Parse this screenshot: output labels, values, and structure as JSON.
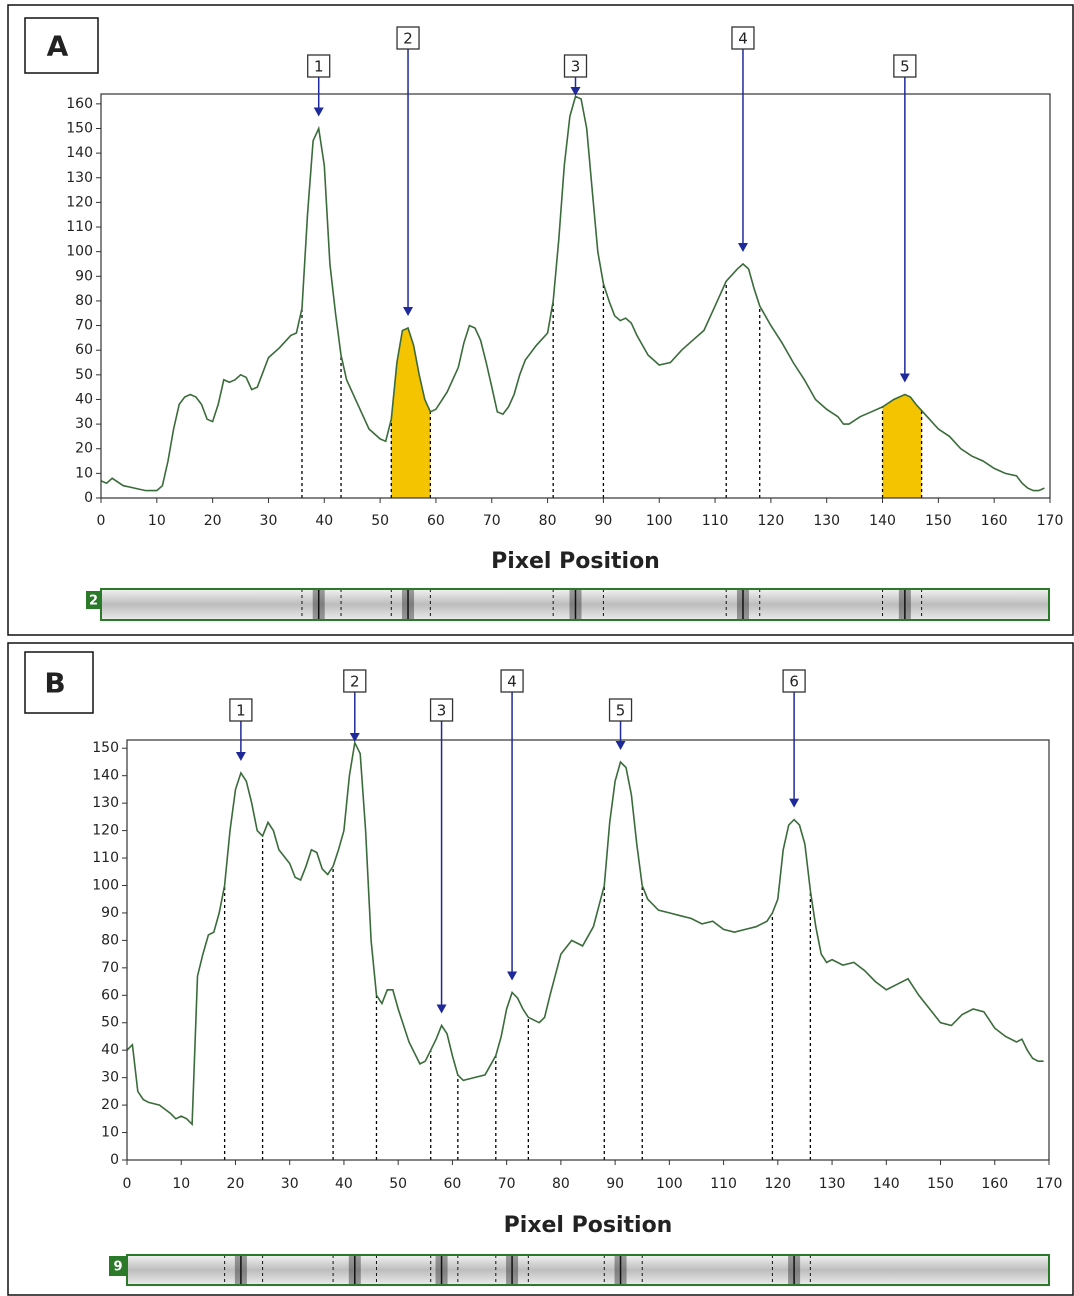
{
  "chart_data": [
    {
      "type": "line",
      "panel": "A",
      "xlabel": "Pixel Position",
      "lane": "2",
      "xlim": [
        0,
        170
      ],
      "ylim": [
        0,
        164
      ],
      "xticks": [
        0,
        10,
        20,
        30,
        40,
        50,
        60,
        70,
        80,
        90,
        100,
        110,
        120,
        130,
        140,
        150,
        160,
        170
      ],
      "yticks": [
        0,
        10,
        20,
        30,
        40,
        50,
        60,
        70,
        80,
        90,
        100,
        110,
        120,
        130,
        140,
        150,
        160
      ],
      "color": "#3a6b3a",
      "fill_color": "#f5c400",
      "x": [
        0,
        1,
        2,
        4,
        6,
        8,
        10,
        11,
        12,
        13,
        14,
        15,
        16,
        17,
        18,
        19,
        20,
        21,
        22,
        23,
        24,
        25,
        26,
        27,
        28,
        30,
        32,
        34,
        35,
        36,
        37,
        38,
        39,
        40,
        41,
        42,
        43,
        44,
        46,
        48,
        50,
        51,
        52,
        53,
        54,
        55,
        56,
        57,
        58,
        59,
        60,
        62,
        64,
        65,
        66,
        67,
        68,
        69,
        70,
        71,
        72,
        73,
        74,
        75,
        76,
        78,
        80,
        81,
        82,
        83,
        84,
        85,
        86,
        87,
        88,
        89,
        90,
        91,
        92,
        93,
        94,
        95,
        96,
        98,
        100,
        102,
        104,
        106,
        108,
        110,
        112,
        114,
        115,
        116,
        117,
        118,
        120,
        122,
        124,
        126,
        128,
        130,
        132,
        133,
        134,
        136,
        138,
        140,
        142,
        144,
        145,
        146,
        148,
        150,
        152,
        154,
        156,
        158,
        160,
        162,
        164,
        165,
        166,
        167,
        168,
        169
      ],
      "values": [
        7,
        6,
        8,
        5,
        4,
        3,
        3,
        5,
        15,
        28,
        38,
        41,
        42,
        41,
        38,
        32,
        31,
        38,
        48,
        47,
        48,
        50,
        49,
        44,
        45,
        57,
        61,
        66,
        67,
        77,
        115,
        145,
        150,
        135,
        95,
        75,
        58,
        48,
        38,
        28,
        24,
        23,
        32,
        55,
        68,
        69,
        62,
        50,
        40,
        35,
        36,
        43,
        53,
        63,
        70,
        69,
        64,
        55,
        45,
        35,
        34,
        37,
        42,
        50,
        56,
        62,
        67,
        80,
        105,
        135,
        155,
        163,
        162,
        150,
        125,
        100,
        87,
        80,
        74,
        72,
        73,
        71,
        66,
        58,
        54,
        55,
        60,
        64,
        68,
        78,
        88,
        93,
        95,
        93,
        85,
        78,
        70,
        63,
        55,
        48,
        40,
        36,
        33,
        30,
        30,
        33,
        35,
        37,
        40,
        42,
        41,
        38,
        33,
        28,
        25,
        20,
        17,
        15,
        12,
        10,
        9,
        6,
        4,
        3,
        3,
        4
      ],
      "peaks": [
        {
          "label": "1",
          "x": 39,
          "value": 150,
          "bounds": [
            36,
            43
          ],
          "shaded": false
        },
        {
          "label": "2",
          "x": 55,
          "value": 69,
          "bounds": [
            52,
            59
          ],
          "shaded": true
        },
        {
          "label": "3",
          "x": 85,
          "value": 163,
          "bounds": [
            81,
            90
          ],
          "shaded": false
        },
        {
          "label": "4",
          "x": 115,
          "value": 95,
          "bounds": [
            112,
            118
          ],
          "shaded": false
        },
        {
          "label": "5",
          "x": 144,
          "value": 42,
          "bounds": [
            140,
            147
          ],
          "shaded": true
        }
      ]
    },
    {
      "type": "line",
      "panel": "B",
      "xlabel": "Pixel Position",
      "lane": "9",
      "xlim": [
        0,
        170
      ],
      "ylim": [
        0,
        153
      ],
      "xticks": [
        0,
        10,
        20,
        30,
        40,
        50,
        60,
        70,
        80,
        90,
        100,
        110,
        120,
        130,
        140,
        150,
        160,
        170
      ],
      "yticks": [
        0,
        10,
        20,
        30,
        40,
        50,
        60,
        70,
        80,
        90,
        100,
        110,
        120,
        130,
        140,
        150
      ],
      "color": "#3a6b3a",
      "fill_color": "#f5c400",
      "x": [
        0,
        1,
        2,
        3,
        4,
        6,
        8,
        9,
        10,
        11,
        12,
        13,
        14,
        15,
        16,
        17,
        18,
        19,
        20,
        21,
        22,
        23,
        24,
        25,
        26,
        27,
        28,
        30,
        31,
        32,
        33,
        34,
        35,
        36,
        37,
        38,
        39,
        40,
        41,
        42,
        43,
        44,
        45,
        46,
        47,
        48,
        49,
        50,
        52,
        54,
        55,
        56,
        57,
        58,
        59,
        60,
        61,
        62,
        64,
        66,
        68,
        69,
        70,
        71,
        72,
        73,
        74,
        76,
        77,
        78,
        80,
        82,
        84,
        86,
        88,
        89,
        90,
        91,
        92,
        93,
        94,
        95,
        96,
        98,
        100,
        102,
        104,
        106,
        108,
        110,
        112,
        114,
        116,
        118,
        119,
        120,
        121,
        122,
        123,
        124,
        125,
        126,
        127,
        128,
        129,
        130,
        132,
        134,
        136,
        138,
        140,
        142,
        144,
        146,
        148,
        150,
        152,
        154,
        156,
        158,
        160,
        162,
        164,
        165,
        166,
        167,
        168,
        169
      ],
      "values": [
        40,
        42,
        25,
        22,
        21,
        20,
        17,
        15,
        16,
        15,
        13,
        67,
        75,
        82,
        83,
        90,
        100,
        120,
        135,
        141,
        138,
        130,
        120,
        118,
        123,
        120,
        113,
        108,
        103,
        102,
        107,
        113,
        112,
        106,
        104,
        107,
        113,
        120,
        140,
        152,
        148,
        120,
        80,
        60,
        57,
        62,
        62,
        55,
        43,
        35,
        36,
        40,
        44,
        49,
        46,
        38,
        31,
        29,
        30,
        31,
        38,
        45,
        55,
        61,
        59,
        55,
        52,
        50,
        52,
        60,
        75,
        80,
        78,
        85,
        100,
        123,
        138,
        145,
        143,
        133,
        115,
        100,
        95,
        91,
        90,
        89,
        88,
        86,
        87,
        84,
        83,
        84,
        85,
        87,
        90,
        95,
        113,
        122,
        124,
        122,
        115,
        98,
        85,
        75,
        72,
        73,
        71,
        72,
        69,
        65,
        62,
        64,
        66,
        60,
        55,
        50,
        49,
        53,
        55,
        54,
        48,
        45,
        43,
        44,
        40,
        37,
        36,
        36
      ],
      "peaks": [
        {
          "label": "1",
          "x": 21,
          "value": 141,
          "bounds": [
            18,
            25
          ],
          "shaded": false
        },
        {
          "label": "2",
          "x": 42,
          "value": 152,
          "bounds": [
            38,
            46
          ],
          "shaded": false
        },
        {
          "label": "3",
          "x": 58,
          "value": 49,
          "bounds": [
            56,
            61
          ],
          "shaded": false
        },
        {
          "label": "4",
          "x": 71,
          "value": 61,
          "bounds": [
            68,
            74
          ],
          "shaded": false
        },
        {
          "label": "5",
          "x": 91,
          "value": 145,
          "bounds": [
            88,
            95
          ],
          "shaded": false
        },
        {
          "label": "6",
          "x": 123,
          "value": 124,
          "bounds": [
            119,
            126
          ],
          "shaded": false
        }
      ]
    }
  ]
}
